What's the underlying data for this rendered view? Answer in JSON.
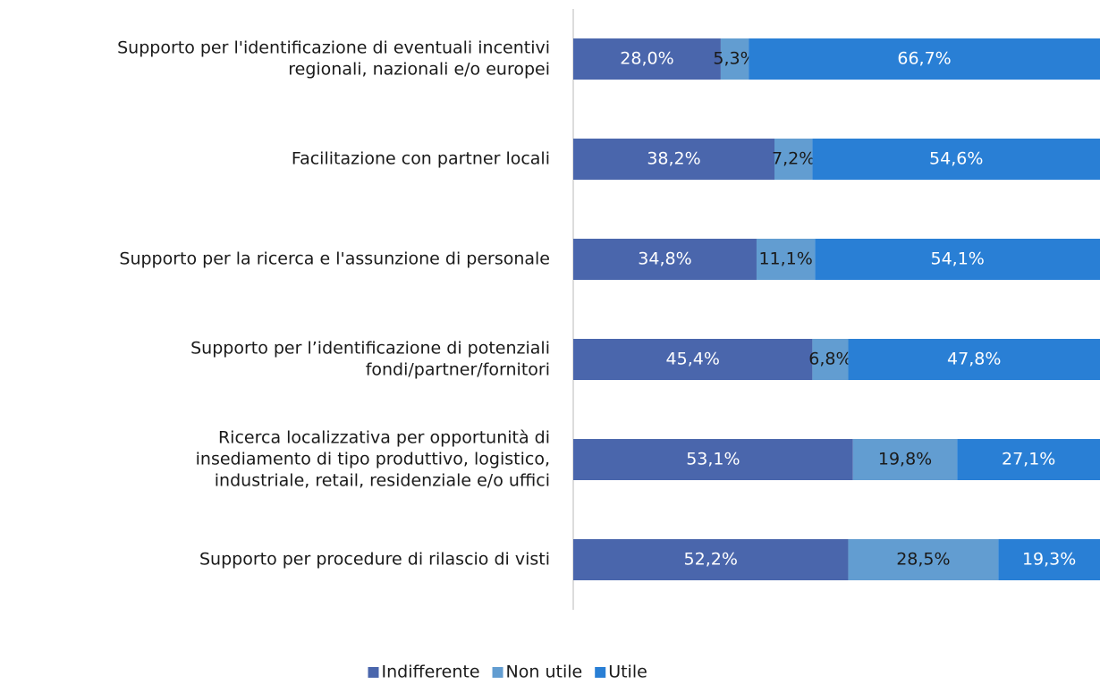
{
  "chart_data": {
    "type": "stacked-bar-horizontal",
    "categories": [
      [
        "Supporto per l'identificazione di eventuali incentivi",
        "regionali, nazionali e/o europei"
      ],
      [
        "Facilitazione con partner locali"
      ],
      [
        "Supporto per la ricerca e l'assunzione di personale"
      ],
      [
        "Supporto per l’identificazione di potenziali",
        "fondi/partner/fornitori"
      ],
      [
        "Ricerca localizzativa per opportunità di",
        "insediamento di tipo produttivo, logistico,",
        "industriale, retail, residenziale e/o uffici"
      ],
      [
        "Supporto per procedure di rilascio di visti"
      ]
    ],
    "series": [
      {
        "name": "Indifferente",
        "color": "#4a66ac",
        "label_color": "#ffffff",
        "values": [
          28.0,
          38.2,
          34.8,
          45.4,
          53.1,
          52.2
        ],
        "value_labels": [
          "28,0%",
          "38,2%",
          "34,8%",
          "45,4%",
          "53,1%",
          "52,2%"
        ]
      },
      {
        "name": "Non utile",
        "color": "#629dd1",
        "label_color": "#1a1a1a",
        "values": [
          5.3,
          7.2,
          11.1,
          6.8,
          19.8,
          28.5
        ],
        "value_labels": [
          "5,3%",
          "7,2%",
          "11,1%",
          "6,8%",
          "19,8%",
          "28,5%"
        ]
      },
      {
        "name": "Utile",
        "color": "#297fd5",
        "label_color": "#ffffff",
        "values": [
          66.7,
          54.6,
          54.1,
          47.8,
          27.1,
          19.3
        ],
        "value_labels": [
          "66,7%",
          "54,6%",
          "54,1%",
          "47,8%",
          "27,1%",
          "19,3%"
        ]
      }
    ],
    "xlim": [
      0,
      100
    ],
    "legend": "bottom"
  }
}
